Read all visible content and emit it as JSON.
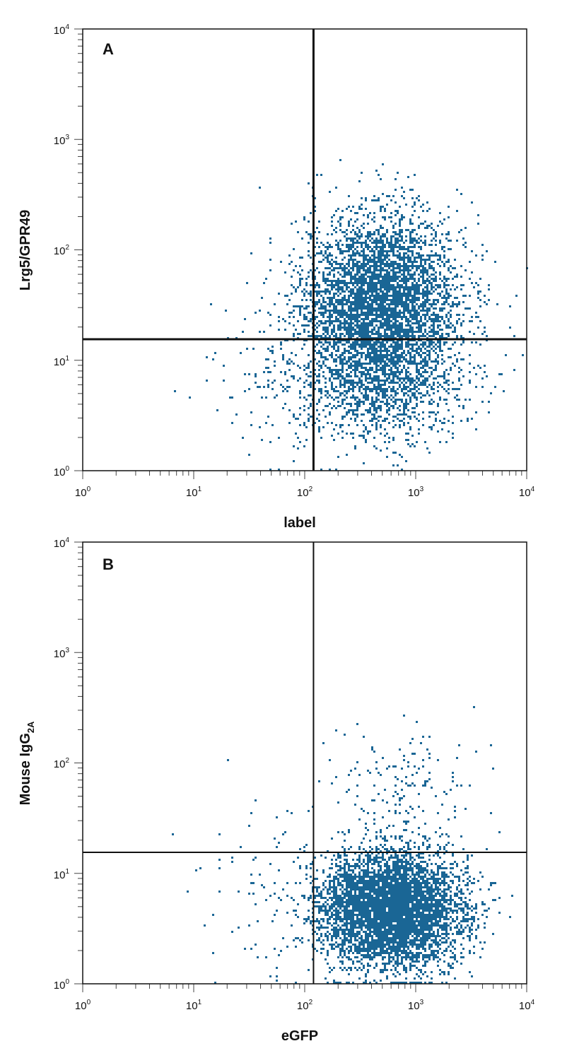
{
  "chart_data": [
    {
      "type": "scatter",
      "panel": "A",
      "xlabel": "label",
      "ylabel": "Lrg5/GPR49",
      "xscale": "log",
      "yscale": "log",
      "xlim": [
        1,
        10000
      ],
      "ylim": [
        1,
        10000
      ],
      "x_tick_labels": [
        "10",
        "10",
        "10",
        "10",
        "10"
      ],
      "x_tick_exponents": [
        "0",
        "1",
        "2",
        "3",
        "4"
      ],
      "y_tick_labels": [
        "10",
        "10",
        "10",
        "10",
        "10"
      ],
      "y_tick_exponents": [
        "0",
        "1",
        "2",
        "3",
        "4"
      ],
      "quadrant_gate": {
        "x": 120,
        "y": 15.5
      },
      "point_color": "#1a6695",
      "populations": [
        {
          "center_x": 500,
          "center_y": 35,
          "spread_log_x": 0.35,
          "spread_log_y": 0.38,
          "count": 4200
        },
        {
          "center_x": 450,
          "center_y": 7,
          "spread_log_x": 0.38,
          "spread_log_y": 0.3,
          "count": 1400
        },
        {
          "center_x": 60,
          "center_y": 6,
          "spread_log_x": 0.35,
          "spread_log_y": 0.4,
          "count": 120
        }
      ]
    },
    {
      "type": "scatter",
      "panel": "B",
      "xlabel": "eGFP",
      "ylabel": "Mouse IgG",
      "ylabel_subscript": "2A",
      "xscale": "log",
      "yscale": "log",
      "xlim": [
        1,
        10000
      ],
      "ylim": [
        1,
        10000
      ],
      "x_tick_labels": [
        "10",
        "10",
        "10",
        "10",
        "10"
      ],
      "x_tick_exponents": [
        "0",
        "1",
        "2",
        "3",
        "4"
      ],
      "y_tick_labels": [
        "10",
        "10",
        "10",
        "10",
        "10"
      ],
      "y_tick_exponents": [
        "0",
        "1",
        "2",
        "3",
        "4"
      ],
      "quadrant_gate": {
        "x": 120,
        "y": 15.5
      },
      "point_color": "#1a6695",
      "populations": [
        {
          "center_x": 600,
          "center_y": 4.5,
          "spread_log_x": 0.32,
          "spread_log_y": 0.26,
          "count": 5200
        },
        {
          "center_x": 700,
          "center_y": 60,
          "spread_log_x": 0.35,
          "spread_log_y": 0.3,
          "count": 160
        },
        {
          "center_x": 50,
          "center_y": 5,
          "spread_log_x": 0.35,
          "spread_log_y": 0.4,
          "count": 90
        }
      ]
    }
  ]
}
